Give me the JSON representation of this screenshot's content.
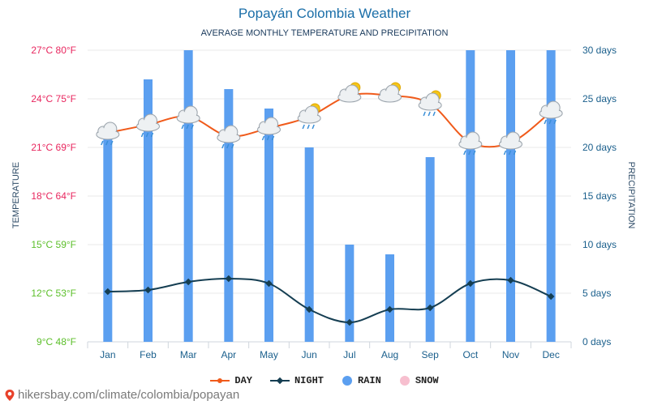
{
  "chart_data": {
    "type": "bar",
    "title": "Popayán Colombia Weather",
    "subtitle": "AVERAGE MONTHLY TEMPERATURE AND PRECIPITATION",
    "ylabel_left": "TEMPERATURE",
    "ylabel_right": "PRECIPITATION",
    "categories": [
      "Jan",
      "Feb",
      "Mar",
      "Apr",
      "May",
      "Jun",
      "Jul",
      "Aug",
      "Sep",
      "Oct",
      "Nov",
      "Dec"
    ],
    "temperature_ticks": [
      "27°C 80°F",
      "24°C 75°F",
      "21°C 69°F",
      "18°C 64°F",
      "15°C 59°F",
      "12°C 53°F",
      "9°C 48°F"
    ],
    "temperature_tick_values": [
      27,
      24,
      21,
      18,
      15,
      12,
      9
    ],
    "temperature_tick_colors": [
      "#e8265e",
      "#e8265e",
      "#e8265e",
      "#e8265e",
      "#5cbf2a",
      "#5cbf2a",
      "#5cbf2a"
    ],
    "precip_ticks": [
      "30 days",
      "25 days",
      "20 days",
      "15 days",
      "10 days",
      "5 days",
      "0 days"
    ],
    "precip_tick_values": [
      30,
      25,
      20,
      15,
      10,
      5,
      0
    ],
    "ylim_temp": [
      9,
      27
    ],
    "ylim_precip": [
      0,
      30
    ],
    "series": [
      {
        "name": "DAY",
        "axis": "temperature",
        "values": [
          21.9,
          22.4,
          22.9,
          21.7,
          22.2,
          22.9,
          24.2,
          24.2,
          23.7,
          21.3,
          21.3,
          23.2
        ]
      },
      {
        "name": "NIGHT",
        "axis": "temperature",
        "values": [
          12.1,
          12.2,
          12.7,
          12.9,
          12.6,
          11.0,
          10.2,
          11.0,
          11.1,
          12.6,
          12.8,
          11.8
        ]
      },
      {
        "name": "RAIN",
        "axis": "precipitation",
        "values": [
          22,
          27,
          30,
          26,
          24,
          20,
          10,
          9,
          19,
          30,
          30,
          30
        ]
      },
      {
        "name": "SNOW",
        "axis": "precipitation",
        "values": [
          0,
          0,
          0,
          0,
          0,
          0,
          0,
          0,
          0,
          0,
          0,
          0
        ]
      }
    ],
    "weather_icons": [
      "rain-cloud-icon",
      "rain-cloud-icon",
      "rain-cloud-icon",
      "rain-cloud-icon",
      "rain-cloud-icon",
      "sun-rain-cloud-icon",
      "sun-cloud-icon",
      "sun-cloud-icon",
      "sun-rain-cloud-icon",
      "rain-cloud-icon",
      "rain-cloud-icon",
      "rain-cloud-icon"
    ],
    "colors": {
      "day": "#f05a1a",
      "night": "#153e52",
      "rain": "#5b9ff0",
      "snow": "#f7bfcf",
      "grid": "#e8e8e8",
      "axis_text": "#1a5f8c"
    },
    "legend_position": "bottom",
    "grid": true
  },
  "legend": {
    "day": "DAY",
    "night": "NIGHT",
    "rain": "RAIN",
    "snow": "SNOW"
  },
  "footer": {
    "text": "hikersbay.com/climate/colombia/popayan"
  }
}
